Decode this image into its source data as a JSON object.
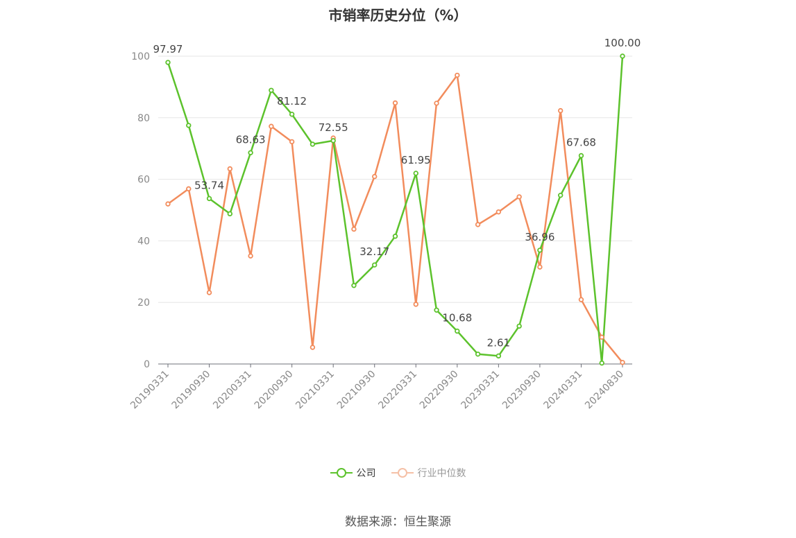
{
  "chart_data": {
    "type": "line",
    "title": "市销率历史分位（%）",
    "x": [
      "20190331",
      "20190630",
      "20190930",
      "20191231",
      "20200331",
      "20200630",
      "20200930",
      "20201231",
      "20210331",
      "20210630",
      "20210930",
      "20211231",
      "20220331",
      "20220630",
      "20220930",
      "20221231",
      "20230331",
      "20230630",
      "20230930",
      "20231231",
      "20240331",
      "20240630",
      "20240830"
    ],
    "x_tick_labels": [
      "20190331",
      "20190930",
      "20200331",
      "20200930",
      "20210331",
      "20210930",
      "20220331",
      "20220930",
      "20230331",
      "20230930",
      "20240331",
      "20240830"
    ],
    "y_ticks": [
      0,
      20,
      40,
      60,
      80,
      100
    ],
    "ylim": [
      0,
      100
    ],
    "grid": true,
    "legend_position": "bottom",
    "series": [
      {
        "name": "公司",
        "color": "#5cc22c",
        "values": [
          97.97,
          77.5,
          53.74,
          48.8,
          68.63,
          88.9,
          81.12,
          71.4,
          72.55,
          25.5,
          32.17,
          41.5,
          61.95,
          17.5,
          10.68,
          3.2,
          2.61,
          12.3,
          36.96,
          54.8,
          67.68,
          0.3,
          100.0
        ],
        "labels": [
          "97.97",
          "",
          "53.74",
          "",
          "68.63",
          "",
          "81.12",
          "",
          "72.55",
          "",
          "32.17",
          "",
          "61.95",
          "",
          "10.68",
          "",
          "2.61",
          "",
          "36.96",
          "",
          "67.68",
          "",
          "100.00"
        ]
      },
      {
        "name": "行业中位数",
        "color": "#f28c5c",
        "values": [
          52.0,
          56.9,
          23.2,
          63.4,
          35.1,
          77.2,
          72.2,
          5.4,
          73.4,
          43.8,
          60.9,
          84.8,
          19.4,
          84.7,
          93.8,
          45.3,
          49.4,
          54.3,
          31.5,
          82.3,
          20.9,
          8.7,
          0.5
        ]
      }
    ]
  },
  "source_text": "数据来源：恒生聚源"
}
